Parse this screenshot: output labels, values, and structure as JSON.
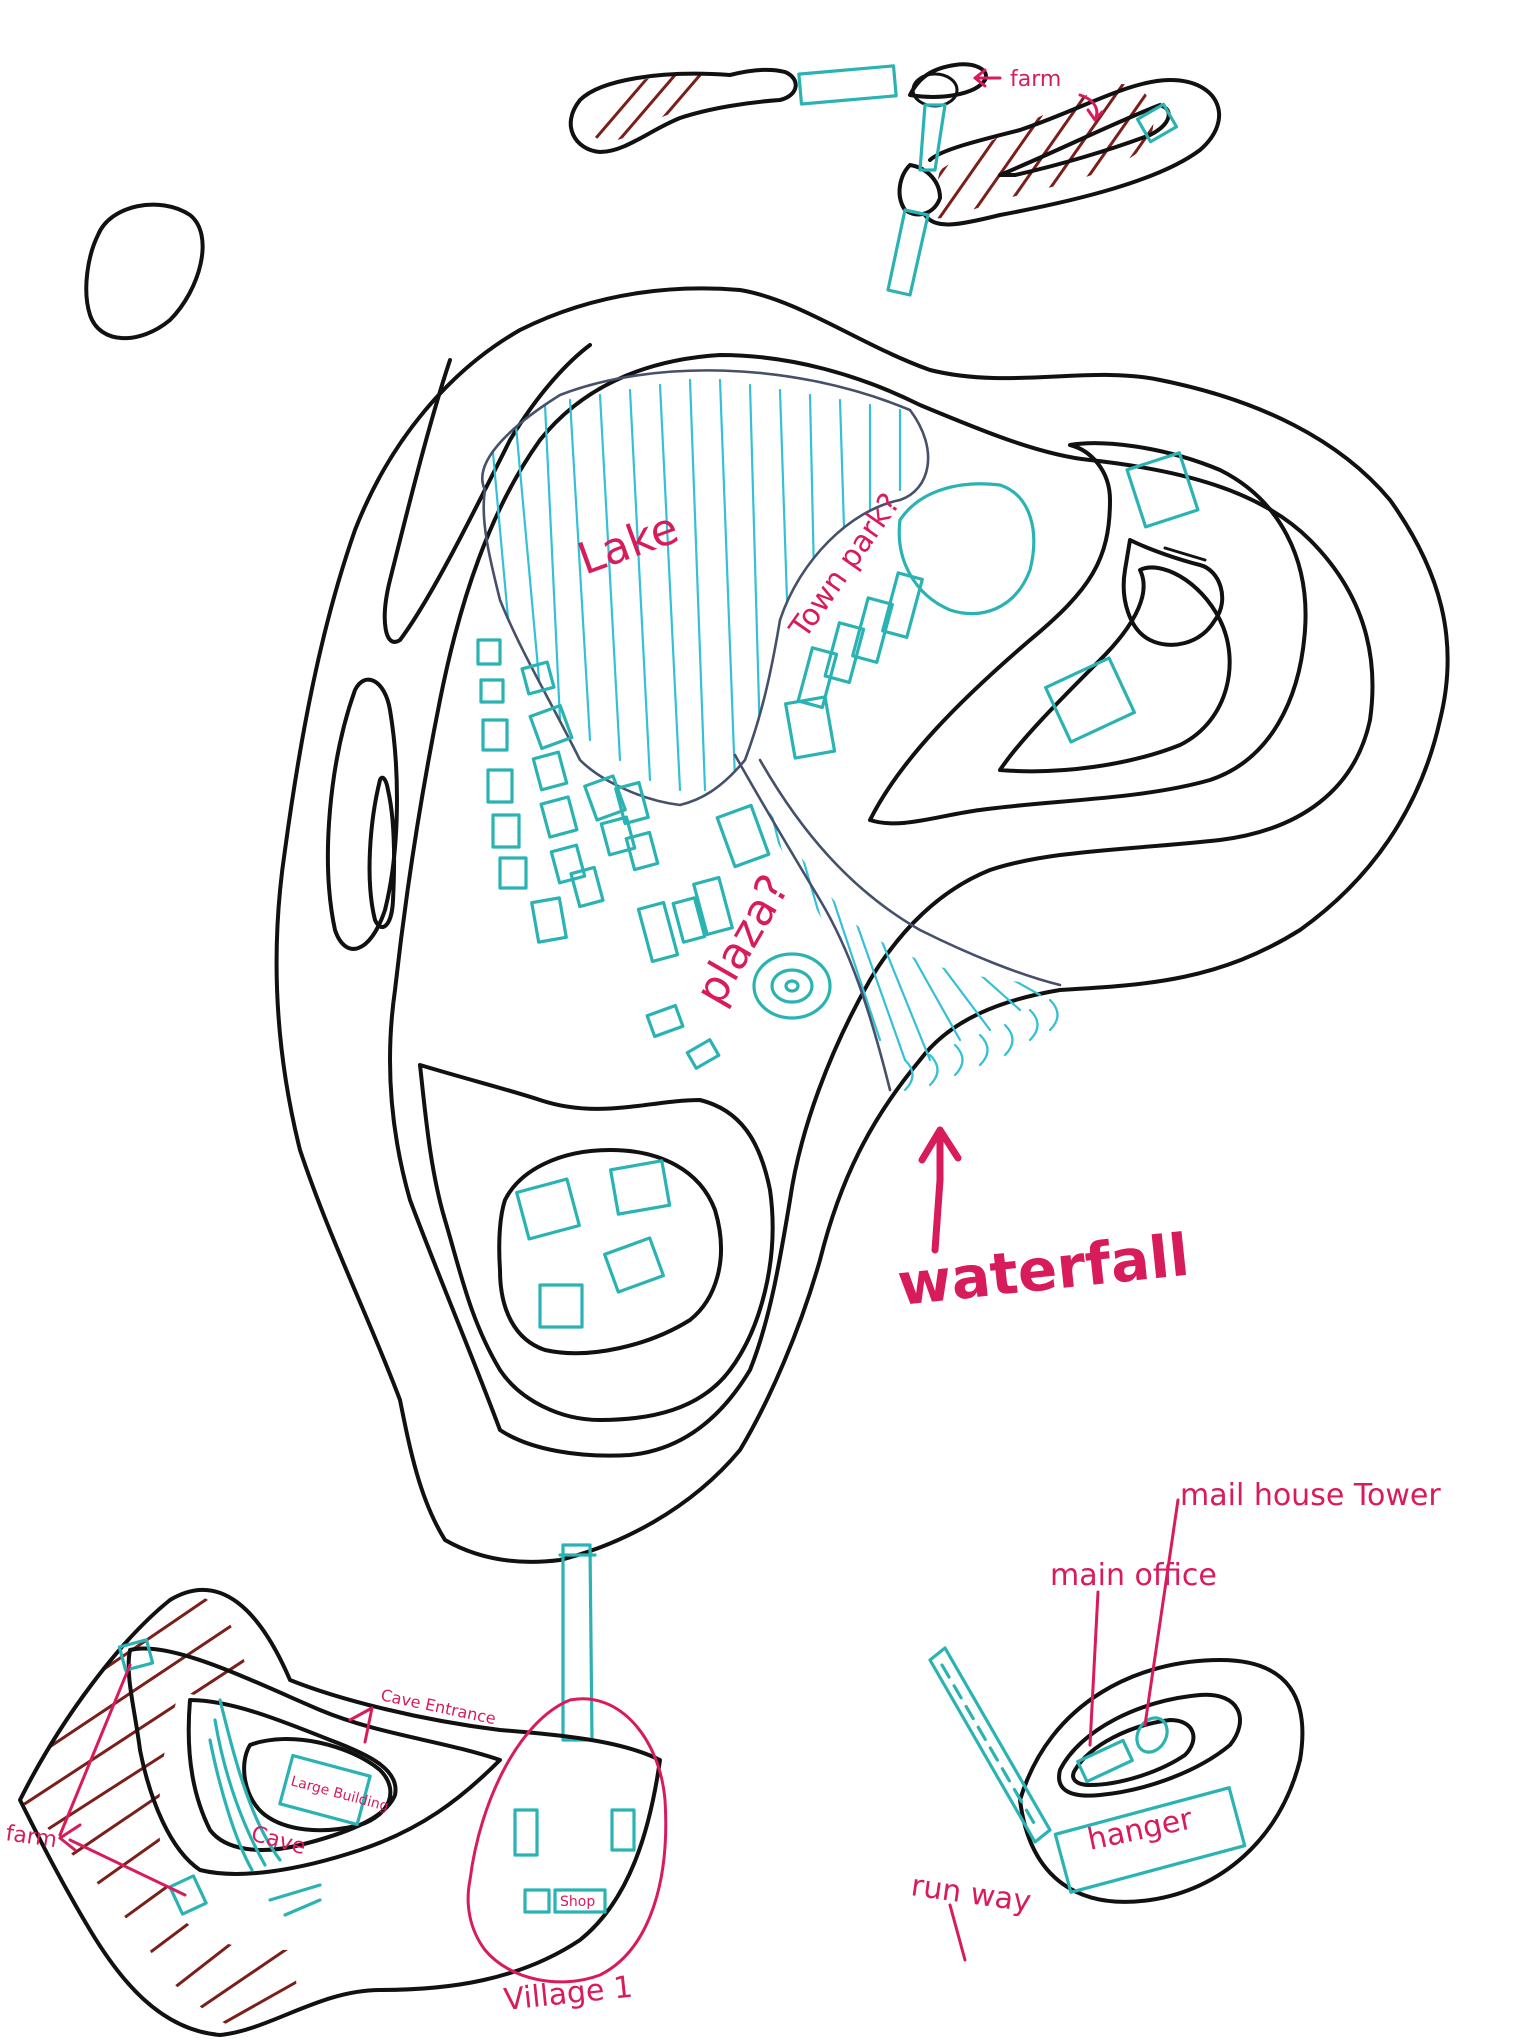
{
  "labels": {
    "lake": "Lake",
    "town_park": "Town park?",
    "plaza": "plaza?",
    "waterfall": "waterfall",
    "farm_north": "farm",
    "farm_southwest": "farm",
    "cave_entrance": "Cave Entrance",
    "large_building": "Large Building",
    "cave": "Cave",
    "shop": "Shop",
    "village_1": "Village 1",
    "main_office": "main office",
    "mail_house_tower": "mail house Tower",
    "hanger": "hanger",
    "runway": "run way"
  },
  "colors": {
    "ink": "#111111",
    "water_and_buildings": "#2bb3b3",
    "annotation": "#d81b5a",
    "farmland_hatch": "#7a1f1a"
  }
}
